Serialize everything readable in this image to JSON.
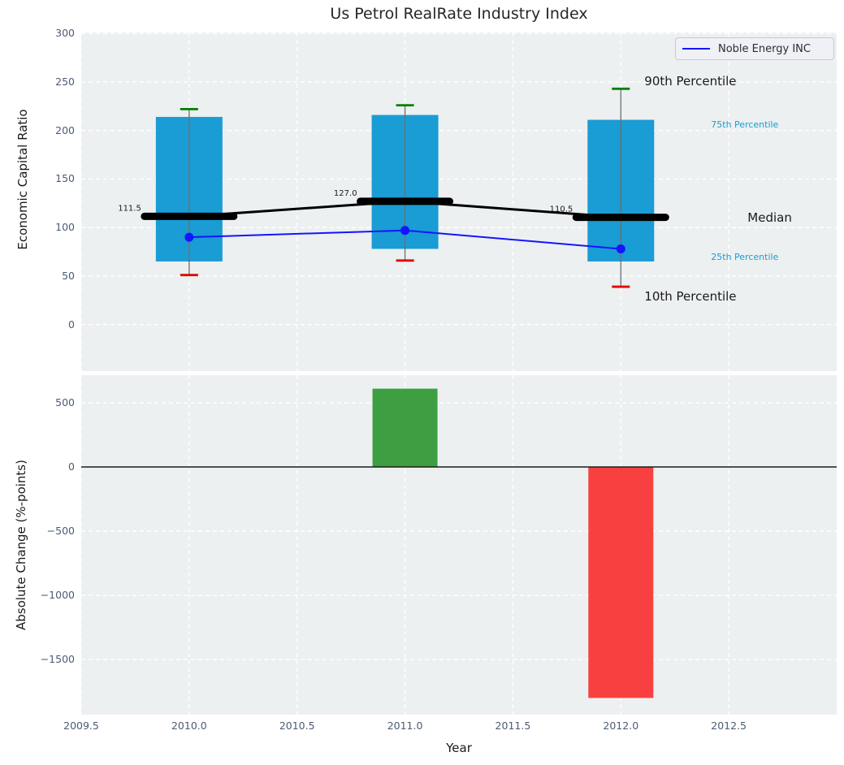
{
  "title": "Us Petrol RealRate Industry Index",
  "legend": {
    "label": "Noble Energy INC",
    "line_color": "#1414ff"
  },
  "colors": {
    "box_fill": "#1a9cd4",
    "whisker": "#6e6e6e",
    "cap_top": "#008000",
    "cap_bottom": "#e50000",
    "median": "#000000",
    "company_line": "#1414ff",
    "bar_positive": "#3d9f42",
    "bar_negative": "#f94040",
    "axes_background": "#ecf0f1",
    "grid": "#ffffff",
    "tick_text": "#4c5b73",
    "label_text": "#1a1a1a",
    "percentile_label_accent": "#1a9cd4",
    "zero_line": "#1a1a1a"
  },
  "chart_data": [
    {
      "type": "boxplot",
      "title": "Us Petrol RealRate Industry Index",
      "ylabel": "Economic Capital Ratio",
      "xlim": [
        2009.5,
        2013.0
      ],
      "ylim": [
        -48,
        301
      ],
      "yticks": [
        300,
        250,
        200,
        150,
        100,
        50,
        0
      ],
      "xticks": [
        2009.5,
        2010.0,
        2010.5,
        2011.0,
        2011.5,
        2012.0,
        2012.5
      ],
      "xtick_labels_visible": false,
      "grid": true,
      "years": [
        2010,
        2011,
        2012
      ],
      "series": [
        {
          "name": "90th Percentile",
          "values": [
            222,
            226,
            243
          ]
        },
        {
          "name": "75th Percentile",
          "values": [
            214,
            216,
            211
          ]
        },
        {
          "name": "Median",
          "values": [
            111.5,
            127.0,
            110.5
          ]
        },
        {
          "name": "25th Percentile",
          "values": [
            65,
            78,
            65
          ]
        },
        {
          "name": "10th Percentile",
          "values": [
            51,
            66,
            39
          ]
        },
        {
          "name": "Noble Energy INC",
          "values": [
            90,
            97,
            78
          ]
        }
      ],
      "median_value_labels": [
        "111.5",
        "127.0",
        "110.5"
      ],
      "percentile_labels": [
        {
          "text": "90th Percentile",
          "attach": "p90",
          "style": "big"
        },
        {
          "text": "75th Percentile",
          "attach": "p75",
          "style": "small"
        },
        {
          "text": "Median",
          "attach": "median",
          "style": "big"
        },
        {
          "text": "25th Percentile",
          "attach": "p25",
          "style": "small"
        },
        {
          "text": "10th Percentile",
          "attach": "p10",
          "style": "big"
        }
      ],
      "legend_position": "upper right"
    },
    {
      "type": "bar",
      "ylabel": "Absolute Change (%-points)",
      "xlabel": "Year",
      "x": [
        2011,
        2012
      ],
      "values": [
        610,
        -1800
      ],
      "bar_colors": [
        "#3d9f42",
        "#f94040"
      ],
      "xlim": [
        2009.5,
        2013.0
      ],
      "ylim": [
        -1930,
        715
      ],
      "yticks": [
        500,
        0,
        -500,
        -1000,
        -1500
      ],
      "xticks": [
        2009.5,
        2010.0,
        2010.5,
        2011.0,
        2011.5,
        2012.0,
        2012.5
      ],
      "grid": true,
      "zero_line": true
    }
  ]
}
